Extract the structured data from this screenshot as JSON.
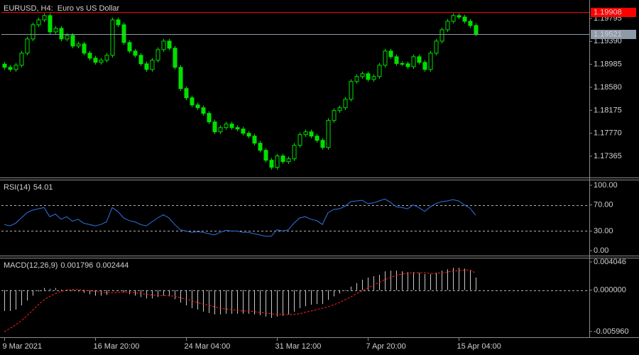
{
  "chart_data": [
    {
      "type": "candlestick",
      "title": "EURUSD, H4:  Euro vs US Dollar",
      "color": "#00e000",
      "xlim": [
        -0.5,
        103
      ],
      "ylim": [
        1.1699,
        1.20095
      ],
      "yticks": [
        1.19795,
        {
          "value": 1.1939,
          "label": "1.19390"
        },
        1.18985,
        {
          "value": 1.1858,
          "label": "1.18580"
        },
        1.18175,
        {
          "value": 1.1777,
          "label": "1.17770"
        },
        1.17365
      ],
      "price_lines": [
        1.19908,
        1.19521
      ],
      "price_line_colors": [
        "#ff0000",
        "#8e9aa8"
      ],
      "ohlc": [
        [
          1.1899,
          1.1903,
          1.18893,
          1.18933
        ],
        [
          1.18933,
          1.18973,
          1.18855,
          1.18895
        ],
        [
          1.18895,
          1.1901,
          1.18855,
          1.1897
        ],
        [
          1.1897,
          1.19223,
          1.1893,
          1.19183
        ],
        [
          1.19183,
          1.19473,
          1.19143,
          1.19433
        ],
        [
          1.19433,
          1.19723,
          1.19393,
          1.19683
        ],
        [
          1.19683,
          1.1981,
          1.19643,
          1.1977
        ],
        [
          1.1977,
          1.19885,
          1.1973,
          1.19845
        ],
        [
          1.19845,
          1.19885,
          1.19518,
          1.19558
        ],
        [
          1.19558,
          1.1966,
          1.19518,
          1.1962
        ],
        [
          1.1962,
          1.1966,
          1.19393,
          1.19433
        ],
        [
          1.19433,
          1.19535,
          1.19393,
          1.19495
        ],
        [
          1.19495,
          1.19535,
          1.19268,
          1.19308
        ],
        [
          1.19308,
          1.19385,
          1.19268,
          1.19345
        ],
        [
          1.19345,
          1.19385,
          1.19143,
          1.19183
        ],
        [
          1.19183,
          1.19223,
          1.19055,
          1.19095
        ],
        [
          1.19095,
          1.19135,
          1.1898,
          1.1902
        ],
        [
          1.1902,
          1.19098,
          1.1898,
          1.19058
        ],
        [
          1.19058,
          1.19185,
          1.19018,
          1.19145
        ],
        [
          1.19145,
          1.1981,
          1.19105,
          1.1977
        ],
        [
          1.1977,
          1.1981,
          1.19643,
          1.19683
        ],
        [
          1.19683,
          1.19723,
          1.1933,
          1.1937
        ],
        [
          1.1937,
          1.1941,
          1.1918,
          1.1922
        ],
        [
          1.1922,
          1.1926,
          1.19105,
          1.19145
        ],
        [
          1.19145,
          1.19185,
          1.18955,
          1.18995
        ],
        [
          1.18995,
          1.19035,
          1.18855,
          1.18895
        ],
        [
          1.18895,
          1.19098,
          1.18855,
          1.19058
        ],
        [
          1.19058,
          1.19285,
          1.19018,
          1.19245
        ],
        [
          1.19245,
          1.19435,
          1.19205,
          1.19395
        ],
        [
          1.19395,
          1.19435,
          1.1923,
          1.1927
        ],
        [
          1.1927,
          1.1931,
          1.18893,
          1.18933
        ],
        [
          1.18933,
          1.18973,
          1.18518,
          1.18558
        ],
        [
          1.18558,
          1.18598,
          1.18355,
          1.18395
        ],
        [
          1.18395,
          1.18435,
          1.1823,
          1.1827
        ],
        [
          1.1827,
          1.1831,
          1.1818,
          1.1822
        ],
        [
          1.1822,
          1.1826,
          1.1808,
          1.1812
        ],
        [
          1.1812,
          1.1816,
          1.1793,
          1.1797
        ],
        [
          1.1797,
          1.1801,
          1.17755,
          1.17795
        ],
        [
          1.17795,
          1.1791,
          1.17755,
          1.1787
        ],
        [
          1.1787,
          1.17973,
          1.1783,
          1.17933
        ],
        [
          1.17933,
          1.17973,
          1.1783,
          1.1787
        ],
        [
          1.1787,
          1.1791,
          1.17805,
          1.17845
        ],
        [
          1.17845,
          1.17885,
          1.1773,
          1.1777
        ],
        [
          1.1777,
          1.1781,
          1.1768,
          1.1772
        ],
        [
          1.1772,
          1.1776,
          1.17555,
          1.17595
        ],
        [
          1.17595,
          1.17635,
          1.1743,
          1.1747
        ],
        [
          1.1747,
          1.1751,
          1.17255,
          1.17295
        ],
        [
          1.17295,
          1.17335,
          1.1713,
          1.1717
        ],
        [
          1.1717,
          1.1741,
          1.1713,
          1.1737
        ],
        [
          1.1737,
          1.1741,
          1.1723,
          1.1727
        ],
        [
          1.1727,
          1.1736,
          1.1723,
          1.1732
        ],
        [
          1.1732,
          1.17598,
          1.1728,
          1.17558
        ],
        [
          1.17558,
          1.17785,
          1.17518,
          1.17745
        ],
        [
          1.17745,
          1.17835,
          1.17705,
          1.17795
        ],
        [
          1.17795,
          1.17835,
          1.1768,
          1.1772
        ],
        [
          1.1772,
          1.1776,
          1.17605,
          1.17645
        ],
        [
          1.17645,
          1.17685,
          1.1748,
          1.1752
        ],
        [
          1.1752,
          1.18035,
          1.1748,
          1.17995
        ],
        [
          1.17995,
          1.1821,
          1.17955,
          1.1817
        ],
        [
          1.1817,
          1.1826,
          1.1813,
          1.1822
        ],
        [
          1.1822,
          1.1841,
          1.1818,
          1.1837
        ],
        [
          1.1837,
          1.18723,
          1.1833,
          1.18683
        ],
        [
          1.18683,
          1.1881,
          1.18643,
          1.1877
        ],
        [
          1.1877,
          1.1886,
          1.1873,
          1.1882
        ],
        [
          1.1882,
          1.1886,
          1.1868,
          1.1872
        ],
        [
          1.1872,
          1.1881,
          1.1868,
          1.1877
        ],
        [
          1.1877,
          1.1901,
          1.1873,
          1.1897
        ],
        [
          1.1897,
          1.1926,
          1.1893,
          1.1922
        ],
        [
          1.1922,
          1.1926,
          1.1908,
          1.1912
        ],
        [
          1.1912,
          1.1916,
          1.1896,
          1.19
        ],
        [
          1.19,
          1.1904,
          1.18955,
          1.18995
        ],
        [
          1.18995,
          1.19035,
          1.18905,
          1.18945
        ],
        [
          1.18945,
          1.1916,
          1.18905,
          1.1912
        ],
        [
          1.1912,
          1.1916,
          1.1898,
          1.1902
        ],
        [
          1.1902,
          1.1906,
          1.18855,
          1.18895
        ],
        [
          1.18895,
          1.19223,
          1.18855,
          1.19183
        ],
        [
          1.19183,
          1.19435,
          1.19143,
          1.19395
        ],
        [
          1.19395,
          1.19635,
          1.19355,
          1.19595
        ],
        [
          1.19595,
          1.19785,
          1.19555,
          1.19745
        ],
        [
          1.19745,
          1.19885,
          1.19705,
          1.19845
        ],
        [
          1.19845,
          1.19885,
          1.1978,
          1.1982
        ],
        [
          1.1982,
          1.1986,
          1.19705,
          1.19745
        ],
        [
          1.19745,
          1.19785,
          1.1963,
          1.1967
        ],
        [
          1.1967,
          1.1971,
          1.19481,
          1.19521
        ]
      ]
    },
    {
      "type": "line",
      "title": "RSI(14)",
      "color": "#2f74e0",
      "xlim": [
        -0.5,
        103
      ],
      "ylim": [
        -7.5,
        107.5
      ],
      "yticks": [
        {
          "value": 100,
          "label": "100.00"
        },
        {
          "value": 70,
          "label": "70.00"
        },
        {
          "value": 30,
          "label": "30.00"
        },
        {
          "value": 0,
          "label": "0.00"
        }
      ],
      "levels": [
        70,
        30
      ],
      "values": [
        40,
        38,
        42,
        50,
        58,
        62,
        64,
        66,
        52,
        56,
        48,
        52,
        45,
        48,
        42,
        40,
        38,
        40,
        44,
        66,
        60,
        50,
        46,
        44,
        40,
        38,
        44,
        50,
        55,
        50,
        40,
        32,
        30,
        28,
        29,
        28,
        26,
        24,
        28,
        31,
        30,
        30,
        28,
        28,
        26,
        24,
        22,
        22,
        32,
        30,
        32,
        42,
        50,
        52,
        48,
        46,
        40,
        58,
        63,
        64,
        68,
        75,
        76,
        77,
        72,
        73,
        76,
        79,
        74,
        67,
        66,
        64,
        70,
        66,
        60,
        67,
        72,
        75,
        76,
        78,
        76,
        70,
        65,
        54.01
      ]
    },
    {
      "type": "bar",
      "title": "MACD(12,26,9)",
      "color": "#c8c8c8",
      "signal_color": "#ff2020",
      "xlim": [
        -0.5,
        103
      ],
      "ylim": [
        -0.00678,
        0.00455
      ],
      "yticks": [
        0.004046,
        {
          "value": 0,
          "label": "0.000000"
        },
        {
          "value": -0.00596,
          "label": "-0.005960"
        }
      ],
      "levels": [
        0
      ],
      "xticks": [
        {
          "value": 0,
          "label": "9 Mar 2021"
        },
        {
          "value": 16,
          "label": "16 Mar 20:00"
        },
        {
          "value": 32,
          "label": "24 Mar 04:00"
        },
        {
          "value": 48,
          "label": "31 Mar 12:00"
        },
        {
          "value": 64,
          "label": "7 Apr 20:00"
        },
        {
          "value": 80,
          "label": "15 Apr 04:00"
        }
      ],
      "values": [
        -0.003,
        -0.003,
        -0.0028,
        -0.0022,
        -0.0015,
        -0.0008,
        -0.0002,
        0.0003,
        0.0002,
        0.0003,
        0.0001,
        0.0001,
        -0.0001,
        -0.0002,
        -0.0004,
        -0.0006,
        -0.0008,
        -0.0008,
        -0.0007,
        -0.0001,
        0,
        -0.0003,
        -0.0006,
        -0.0008,
        -0.001,
        -0.0012,
        -0.0012,
        -0.001,
        -0.0008,
        -0.0009,
        -0.0013,
        -0.0018,
        -0.0022,
        -0.0026,
        -0.0028,
        -0.0031,
        -0.0033,
        -0.0035,
        -0.0035,
        -0.0034,
        -0.0034,
        -0.0034,
        -0.0034,
        -0.0034,
        -0.0035,
        -0.0036,
        -0.0038,
        -0.004,
        -0.0038,
        -0.0037,
        -0.0035,
        -0.0031,
        -0.0026,
        -0.0023,
        -0.0021,
        -0.002,
        -0.002,
        -0.0014,
        -0.0009,
        -0.0005,
        -0.0001,
        0.0005,
        0.001,
        0.0015,
        0.0018,
        0.002,
        0.0022,
        0.0027,
        0.0028,
        0.0028,
        0.0027,
        0.0026,
        0.0026,
        0.0025,
        0.0023,
        0.0023,
        0.0025,
        0.0028,
        0.003,
        0.0032,
        0.0032,
        0.0031,
        0.0028,
        0.001796
      ],
      "signal": [
        -0.006,
        -0.0055,
        -0.005,
        -0.0044,
        -0.0037,
        -0.0029,
        -0.0021,
        -0.0014,
        -0.0009,
        -0.0005,
        -0.0002,
        0,
        0.0001,
        0.0001,
        0,
        -0.0001,
        -0.0002,
        -0.0003,
        -0.0004,
        -0.0004,
        -0.0003,
        -0.0003,
        -0.0003,
        -0.0004,
        -0.0005,
        -0.0006,
        -0.0007,
        -0.0008,
        -0.0008,
        -0.0008,
        -0.0009,
        -0.0011,
        -0.0013,
        -0.0015,
        -0.0018,
        -0.002,
        -0.0022,
        -0.0024,
        -0.0026,
        -0.0027,
        -0.0028,
        -0.0029,
        -0.003,
        -0.003,
        -0.0031,
        -0.0032,
        -0.0033,
        -0.0034,
        -0.0035,
        -0.0035,
        -0.0035,
        -0.0035,
        -0.0034,
        -0.0032,
        -0.003,
        -0.0028,
        -0.0026,
        -0.0024,
        -0.0021,
        -0.0018,
        -0.0014,
        -0.001,
        -0.0005,
        -0.0001,
        0.0003,
        0.0007,
        0.0011,
        0.0015,
        0.0018,
        0.0021,
        0.0023,
        0.0024,
        0.0025,
        0.0025,
        0.0025,
        0.0024,
        0.0024,
        0.0025,
        0.0026,
        0.0027,
        0.0028,
        0.0029,
        0.0029,
        0.002444
      ]
    }
  ]
}
